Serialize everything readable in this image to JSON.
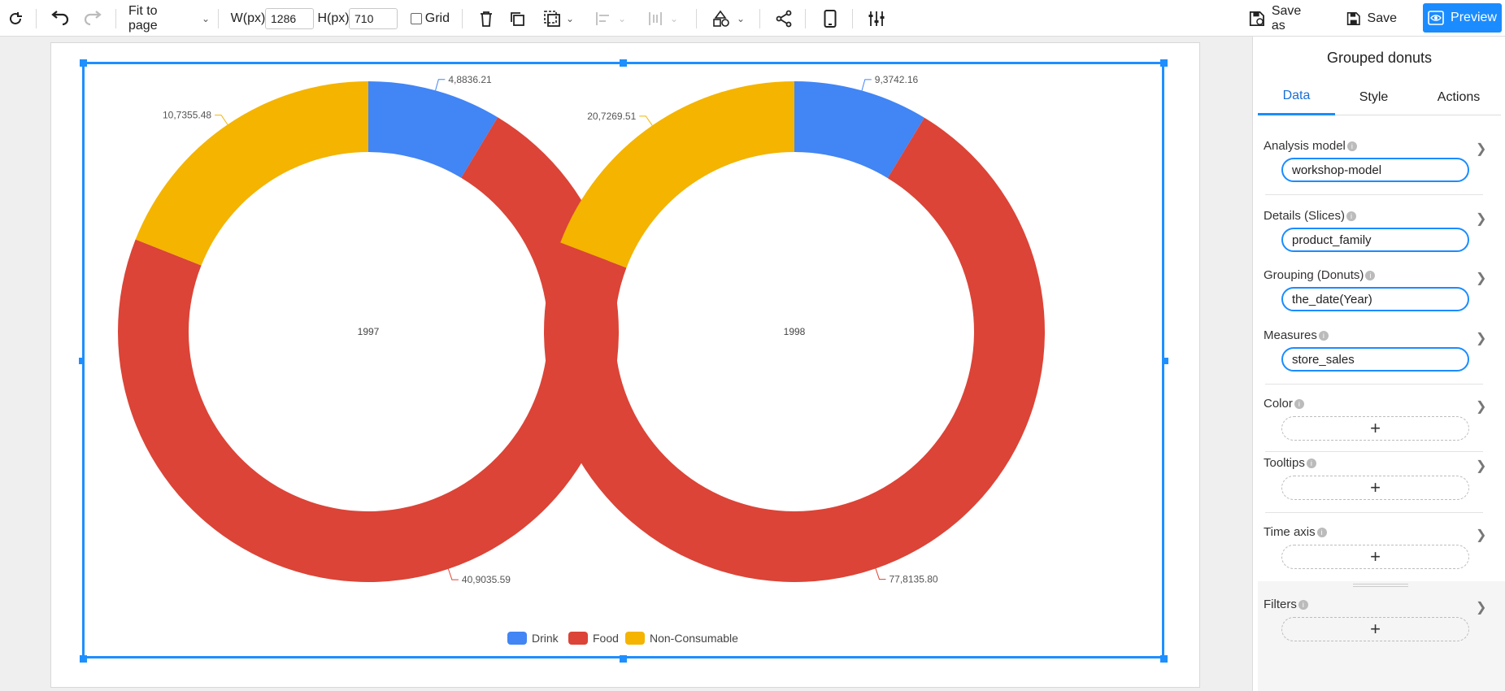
{
  "toolbar": {
    "fit_label": "Fit to page",
    "width_label": "W(px)",
    "width_value": "1286",
    "height_label": "H(px)",
    "height_value": "710",
    "grid_label": "Grid",
    "save_as_label": "Save as",
    "save_label": "Save",
    "preview_label": "Preview"
  },
  "panel": {
    "title": "Grouped donuts",
    "tabs": [
      "Data",
      "Style",
      "Actions"
    ],
    "fields": [
      {
        "label": "Analysis model",
        "value": "workshop-model"
      },
      {
        "label": "Details (Slices)",
        "value": "product_family"
      },
      {
        "label": "Grouping (Donuts)",
        "value": "the_date(Year)"
      },
      {
        "label": "Measures",
        "value": "store_sales"
      },
      {
        "label": "Color",
        "value": null
      },
      {
        "label": "Tooltips",
        "value": null
      },
      {
        "label": "Time axis",
        "value": null
      },
      {
        "label": "Filters",
        "value": null
      }
    ]
  },
  "colors": {
    "Drink": "#4285f4",
    "Food": "#db4437",
    "Non-Consumable": "#f4b400",
    "accent": "#1a8cff"
  },
  "chart_data": {
    "type": "pie",
    "subtype": "grouped-donut",
    "legend": [
      "Drink",
      "Food",
      "Non-Consumable"
    ],
    "legend_position": "bottom",
    "donuts": [
      {
        "group": "1997",
        "slices": [
          {
            "name": "Drink",
            "value": 48836.21,
            "label": "4,8836.21"
          },
          {
            "name": "Food",
            "value": 409035.59,
            "label": "40,9035.59"
          },
          {
            "name": "Non-Consumable",
            "value": 107355.48,
            "label": "10,7355.48"
          }
        ]
      },
      {
        "group": "1998",
        "slices": [
          {
            "name": "Drink",
            "value": 93742.16,
            "label": "9,3742.16"
          },
          {
            "name": "Food",
            "value": 778135.8,
            "label": "77,8135.80"
          },
          {
            "name": "Non-Consumable",
            "value": 207269.51,
            "label": "20,7269.51"
          }
        ]
      }
    ]
  }
}
